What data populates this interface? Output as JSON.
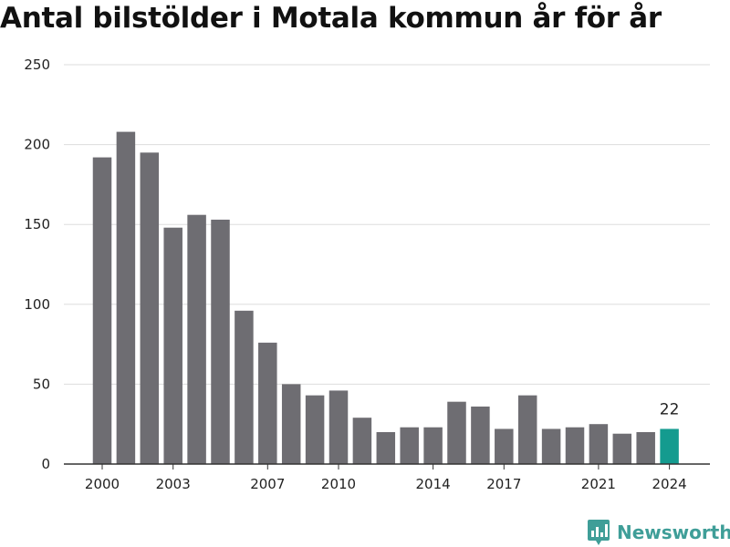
{
  "chart_data": {
    "type": "bar",
    "title": "Antal bilstölder i Motala kommun år för år",
    "xlabel": "",
    "ylabel": "",
    "categories": [
      "2000",
      "2001",
      "2002",
      "2003",
      "2004",
      "2005",
      "2006",
      "2007",
      "2008",
      "2009",
      "2010",
      "2011",
      "2012",
      "2013",
      "2014",
      "2015",
      "2016",
      "2017",
      "2018",
      "2019",
      "2020",
      "2021",
      "2022",
      "2023",
      "2024"
    ],
    "values": [
      192,
      208,
      195,
      148,
      156,
      153,
      96,
      76,
      50,
      43,
      46,
      29,
      20,
      23,
      23,
      39,
      36,
      22,
      43,
      22,
      23,
      25,
      19,
      20,
      22
    ],
    "x_tick_labels": [
      "2000",
      "2003",
      "2007",
      "2010",
      "2014",
      "2017",
      "2021",
      "2024"
    ],
    "y_ticks": [
      0,
      50,
      100,
      150,
      200,
      250
    ],
    "ylim": [
      0,
      250
    ],
    "grid": true,
    "highlight_index": 24,
    "highlight_label": "22",
    "colors": {
      "bar": "#6e6d72",
      "highlight": "#149b8f",
      "grid": "#dddddd",
      "axis": "#333333"
    }
  },
  "brand": {
    "name": "Newsworthy",
    "icon": "newsworthy-logo-icon"
  }
}
